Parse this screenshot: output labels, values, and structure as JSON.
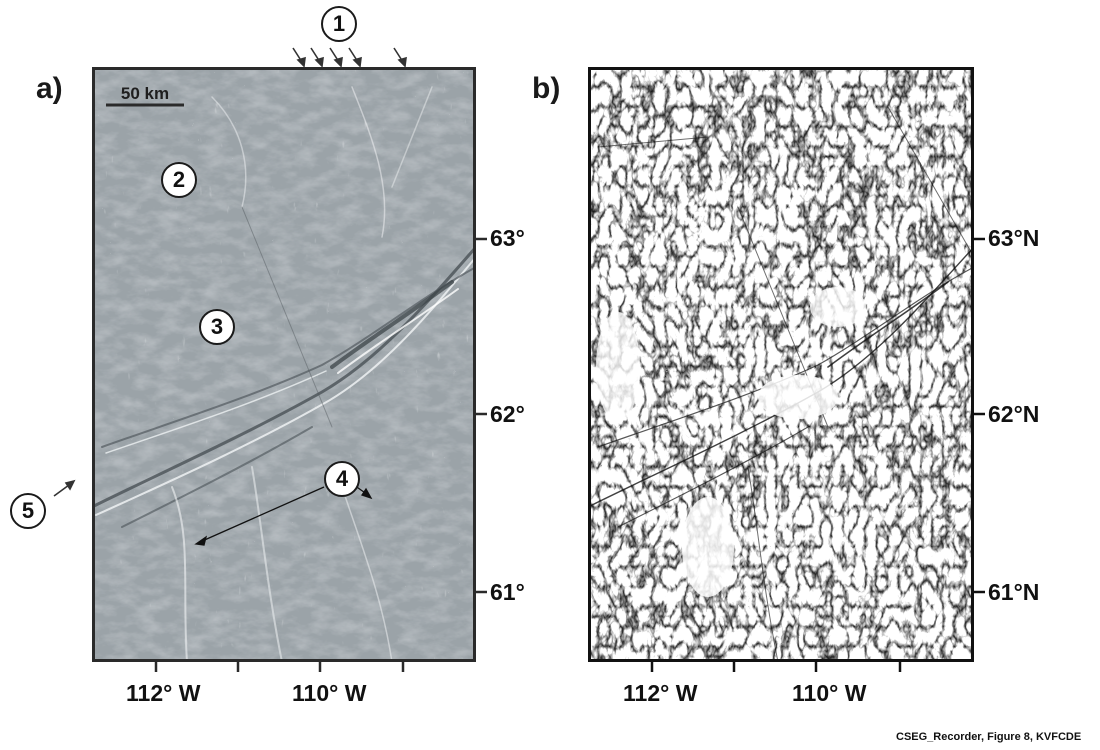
{
  "figure": {
    "credit": "CSEG_Recorder, Figure 8, KVFCDE"
  },
  "panel_a": {
    "label": "a)",
    "scale_bar": "50 km",
    "lat_ticks": [
      "63°",
      "62°",
      "61°"
    ],
    "lon_ticks": [
      "112° W",
      "110° W"
    ],
    "map_fill": "#9ba3a8"
  },
  "panel_b": {
    "label": "b)",
    "lat_ticks": [
      "63°N",
      "62°N",
      "61°N"
    ],
    "lon_ticks": [
      "112° W",
      "110° W"
    ]
  },
  "annotations": {
    "one": "1",
    "two": "2",
    "three": "3",
    "four": "4",
    "five": "5"
  }
}
